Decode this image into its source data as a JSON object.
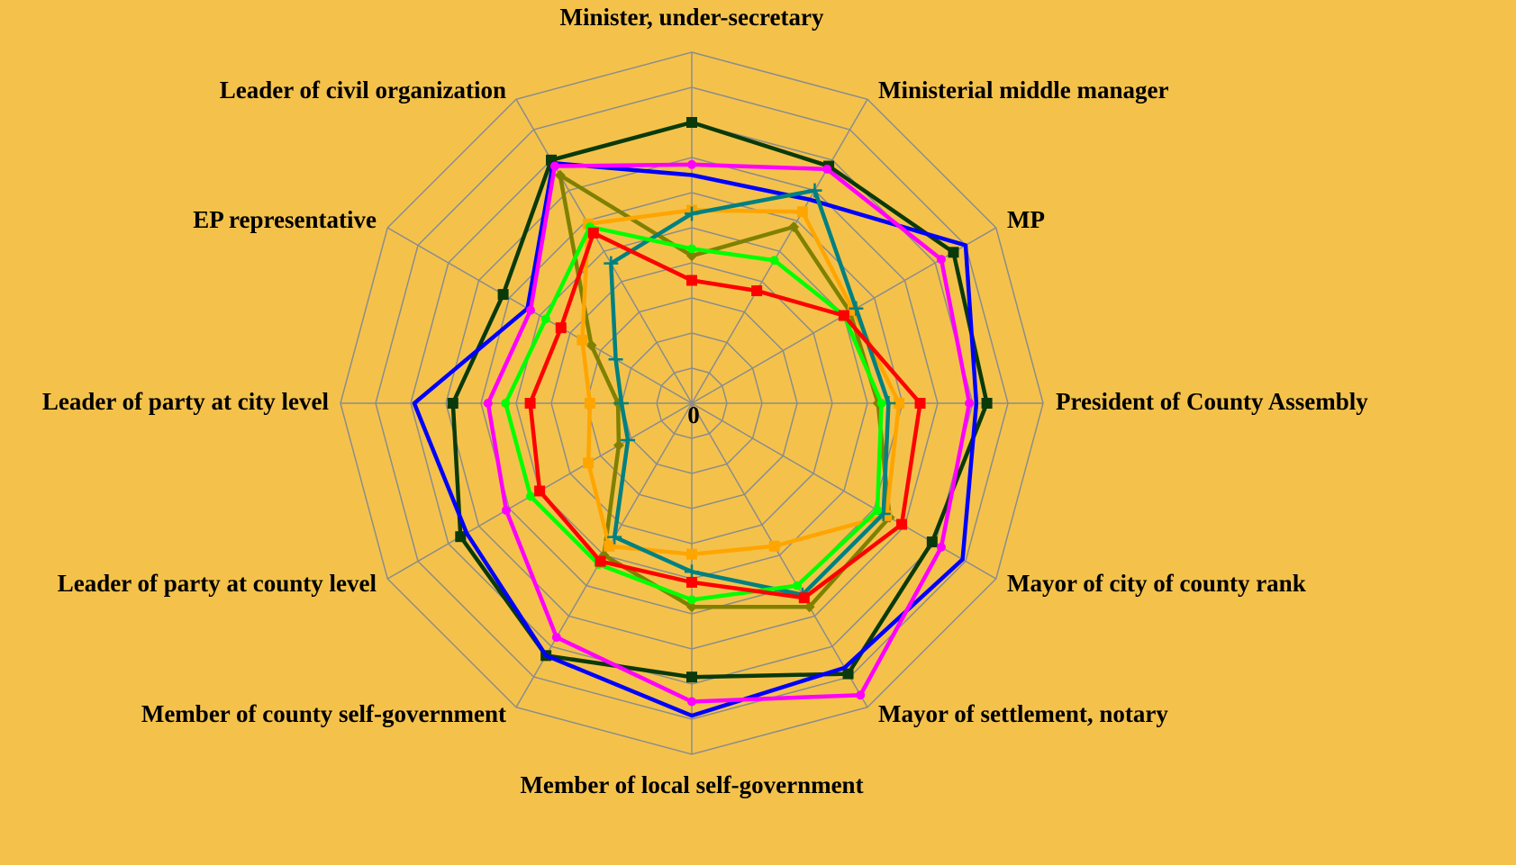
{
  "chart_data": {
    "type": "radar",
    "categories": [
      "Minister, under-secretary",
      "Ministerial middle manager",
      "MP",
      "President of County Assembly",
      "Mayor of city of county rank",
      "Mayor of settlement, notary",
      "Member of local self-government",
      "Member of county self-government",
      "Leader of party at county level",
      "Leader of party at city level",
      "EP representative",
      "Leader of civil organization"
    ],
    "ylim": [
      0,
      10
    ],
    "yticks": [
      0
    ],
    "grid": true,
    "series": [
      {
        "color": "#0a3a0a",
        "marker": "square",
        "values": [
          8.0,
          7.8,
          8.6,
          8.4,
          7.9,
          8.9,
          7.8,
          8.3,
          7.6,
          6.8,
          6.2,
          8.0
        ]
      },
      {
        "color": "#0000ff",
        "marker": "none",
        "values": [
          6.5,
          6.7,
          9.0,
          8.1,
          8.9,
          8.7,
          8.9,
          8.3,
          7.4,
          7.9,
          5.4,
          7.9
        ]
      },
      {
        "color": "#ff00ff",
        "marker": "circle",
        "values": [
          6.8,
          7.7,
          8.2,
          7.9,
          8.2,
          9.6,
          8.5,
          7.7,
          6.1,
          5.8,
          5.3,
          7.8
        ]
      },
      {
        "color": "#808000",
        "marker": "diamond",
        "values": [
          4.2,
          5.8,
          5.2,
          5.3,
          6.5,
          6.7,
          5.8,
          5.0,
          2.4,
          2.1,
          3.3,
          7.5
        ]
      },
      {
        "color": "#ffa500",
        "marker": "square",
        "values": [
          5.5,
          6.3,
          5.3,
          5.9,
          6.4,
          4.7,
          4.3,
          4.7,
          3.4,
          2.9,
          3.6,
          5.9
        ]
      },
      {
        "color": "#008080",
        "marker": "plus",
        "values": [
          5.4,
          7.0,
          5.4,
          5.6,
          6.3,
          6.3,
          4.8,
          4.4,
          2.1,
          2.0,
          2.5,
          4.6
        ]
      },
      {
        "color": "#00ff00",
        "marker": "circle",
        "values": [
          4.4,
          4.7,
          5.0,
          5.4,
          6.1,
          6.0,
          5.6,
          5.3,
          5.3,
          5.3,
          4.8,
          5.8
        ]
      },
      {
        "color": "#ff0000",
        "marker": "square",
        "values": [
          3.5,
          3.7,
          5.0,
          6.5,
          6.9,
          6.4,
          5.1,
          5.2,
          5.0,
          4.6,
          4.3,
          5.6
        ]
      }
    ]
  }
}
